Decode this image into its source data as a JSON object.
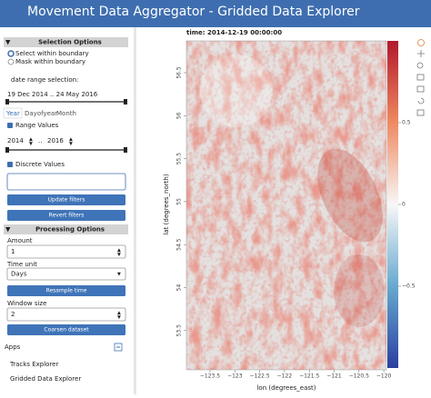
{
  "header": {
    "title": "Movement Data Aggregator  -  Gridded Data Explorer"
  },
  "sidebar": {
    "selection_options": {
      "title": "Selection Options",
      "radios": [
        "Select within boundary",
        "Mask within boundary"
      ],
      "date_label": "date range selection:",
      "date_range": "19 Dec 2014 .. 24 May 2016",
      "tabs": [
        "Year",
        "Dayofyear",
        "Month"
      ],
      "range_values": "Range Values",
      "range_start": "2014",
      "range_end": "2016",
      "discrete_values": "Discrete Values",
      "buttons": [
        "Update filters",
        "Revert filters"
      ]
    },
    "processing_options": {
      "title": "Processing Options",
      "amount_label": "Amount",
      "amount": "1",
      "time_unit_label": "Time unit",
      "time_unit": "Days",
      "resample": "Resample time",
      "window_label": "Window size",
      "window": "2",
      "coarsen": "Coarsen dataset"
    },
    "apps": {
      "title": "Apps",
      "items": [
        "Tracks Explorer",
        "Gridded Data Explorer"
      ]
    }
  },
  "plot": {
    "title": "time: 2014-12-19 00:00:00",
    "xlabel": "lon (degrees_east)",
    "ylabel": "lat (degrees_north)",
    "xticks": [
      "−123.5",
      "−123",
      "−122.5",
      "−122",
      "−121.5",
      "−121",
      "−120.5",
      "−120"
    ],
    "yticks": [
      "56.5",
      "56",
      "55.5",
      "55",
      "54.5",
      "54",
      "53.5"
    ],
    "colorbar_ticks": [
      "0.5",
      "0",
      "−0.5"
    ]
  }
}
